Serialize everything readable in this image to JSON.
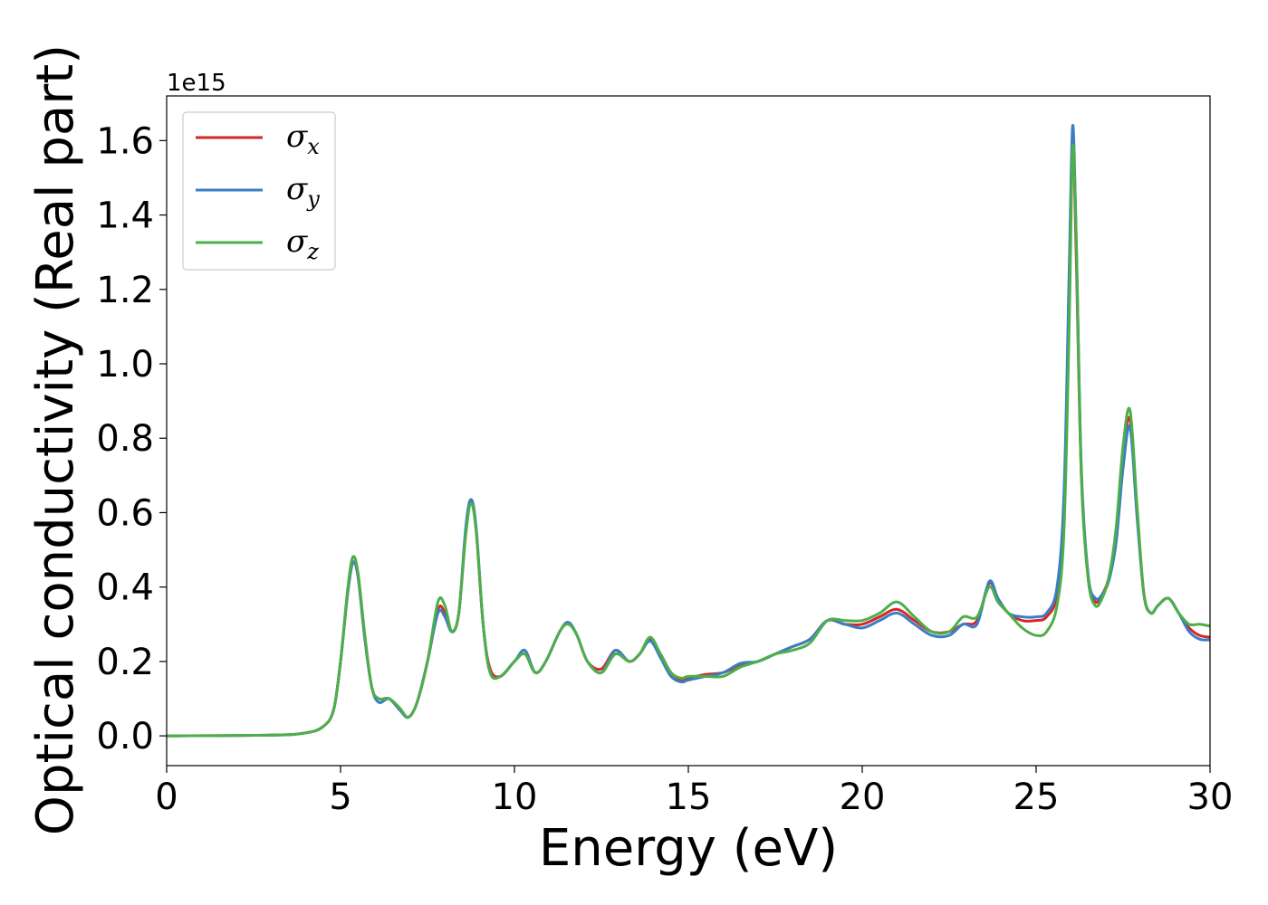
{
  "chart_data": {
    "type": "line",
    "xlabel": "Energy (eV)",
    "ylabel": "Optical conductivity (Real part)",
    "y_offset_label": "1e15",
    "xlim": [
      0,
      30
    ],
    "ylim": [
      -0.08,
      1.72
    ],
    "xticks": [
      0,
      5,
      10,
      15,
      20,
      25,
      30
    ],
    "xtick_labels": [
      "0",
      "5",
      "10",
      "15",
      "20",
      "25",
      "30"
    ],
    "yticks": [
      0.0,
      0.2,
      0.4,
      0.6,
      0.8,
      1.0,
      1.2,
      1.4,
      1.6
    ],
    "ytick_labels": [
      "0.0",
      "0.2",
      "0.4",
      "0.6",
      "0.8",
      "1.0",
      "1.2",
      "1.4",
      "1.6"
    ],
    "grid": false,
    "legend_position": "top-left",
    "x": [
      0,
      3,
      4,
      4.5,
      4.8,
      5.0,
      5.2,
      5.35,
      5.5,
      5.7,
      5.9,
      6.1,
      6.4,
      6.7,
      6.95,
      7.2,
      7.5,
      7.8,
      8.0,
      8.2,
      8.4,
      8.6,
      8.75,
      8.9,
      9.1,
      9.3,
      9.6,
      10.0,
      10.3,
      10.6,
      10.9,
      11.3,
      11.55,
      11.8,
      12.1,
      12.5,
      12.9,
      13.3,
      13.6,
      13.9,
      14.2,
      14.5,
      14.8,
      15.0,
      15.5,
      16.0,
      16.5,
      17.0,
      17.5,
      18.0,
      18.5,
      19.0,
      19.5,
      20.0,
      20.5,
      21.0,
      21.5,
      22.0,
      22.5,
      22.9,
      23.3,
      23.65,
      23.9,
      24.2,
      24.6,
      25.0,
      25.3,
      25.6,
      25.8,
      25.95,
      26.05,
      26.15,
      26.3,
      26.5,
      26.7,
      26.9,
      27.1,
      27.3,
      27.5,
      27.7,
      27.9,
      28.1,
      28.3,
      28.5,
      28.8,
      29.1,
      29.4,
      29.7,
      30.0
    ],
    "series": [
      {
        "name": "σx",
        "color": "#d62728",
        "values": [
          0,
          0.002,
          0.008,
          0.025,
          0.07,
          0.2,
          0.38,
          0.465,
          0.43,
          0.26,
          0.13,
          0.1,
          0.1,
          0.07,
          0.05,
          0.09,
          0.2,
          0.34,
          0.33,
          0.28,
          0.33,
          0.55,
          0.63,
          0.55,
          0.3,
          0.18,
          0.16,
          0.2,
          0.22,
          0.17,
          0.2,
          0.28,
          0.305,
          0.27,
          0.2,
          0.18,
          0.23,
          0.2,
          0.22,
          0.26,
          0.22,
          0.17,
          0.15,
          0.155,
          0.165,
          0.17,
          0.19,
          0.2,
          0.22,
          0.24,
          0.26,
          0.31,
          0.3,
          0.3,
          0.32,
          0.34,
          0.31,
          0.28,
          0.28,
          0.3,
          0.31,
          0.41,
          0.37,
          0.33,
          0.31,
          0.31,
          0.32,
          0.38,
          0.6,
          1.2,
          1.6,
          1.3,
          0.7,
          0.42,
          0.36,
          0.38,
          0.43,
          0.55,
          0.76,
          0.85,
          0.6,
          0.38,
          0.33,
          0.35,
          0.37,
          0.33,
          0.29,
          0.27,
          0.265
        ]
      },
      {
        "name": "σy",
        "color": "#3b7dc4",
        "values": [
          0,
          0.002,
          0.008,
          0.025,
          0.07,
          0.2,
          0.38,
          0.465,
          0.43,
          0.26,
          0.13,
          0.09,
          0.1,
          0.07,
          0.05,
          0.09,
          0.2,
          0.33,
          0.32,
          0.28,
          0.33,
          0.56,
          0.635,
          0.56,
          0.3,
          0.17,
          0.16,
          0.2,
          0.23,
          0.17,
          0.2,
          0.28,
          0.305,
          0.27,
          0.2,
          0.17,
          0.23,
          0.2,
          0.22,
          0.255,
          0.21,
          0.16,
          0.145,
          0.15,
          0.16,
          0.17,
          0.195,
          0.2,
          0.22,
          0.24,
          0.26,
          0.31,
          0.3,
          0.29,
          0.31,
          0.33,
          0.3,
          0.27,
          0.27,
          0.3,
          0.3,
          0.415,
          0.37,
          0.33,
          0.32,
          0.32,
          0.33,
          0.4,
          0.65,
          1.25,
          1.64,
          1.35,
          0.72,
          0.43,
          0.37,
          0.38,
          0.42,
          0.52,
          0.72,
          0.83,
          0.59,
          0.38,
          0.33,
          0.35,
          0.37,
          0.33,
          0.28,
          0.26,
          0.258
        ]
      },
      {
        "name": "σz",
        "color": "#4daf4a",
        "values": [
          0,
          0.002,
          0.008,
          0.025,
          0.07,
          0.2,
          0.39,
          0.48,
          0.44,
          0.27,
          0.13,
          0.1,
          0.1,
          0.075,
          0.05,
          0.09,
          0.2,
          0.36,
          0.35,
          0.28,
          0.33,
          0.54,
          0.625,
          0.55,
          0.3,
          0.17,
          0.16,
          0.2,
          0.22,
          0.17,
          0.2,
          0.28,
          0.3,
          0.27,
          0.2,
          0.17,
          0.22,
          0.2,
          0.22,
          0.265,
          0.22,
          0.17,
          0.155,
          0.16,
          0.16,
          0.16,
          0.185,
          0.2,
          0.22,
          0.23,
          0.25,
          0.31,
          0.31,
          0.31,
          0.33,
          0.36,
          0.32,
          0.28,
          0.28,
          0.32,
          0.32,
          0.4,
          0.36,
          0.33,
          0.29,
          0.27,
          0.28,
          0.35,
          0.55,
          1.1,
          1.58,
          1.35,
          0.7,
          0.42,
          0.35,
          0.37,
          0.43,
          0.56,
          0.78,
          0.875,
          0.62,
          0.38,
          0.33,
          0.35,
          0.37,
          0.33,
          0.3,
          0.3,
          0.295
        ]
      }
    ]
  }
}
